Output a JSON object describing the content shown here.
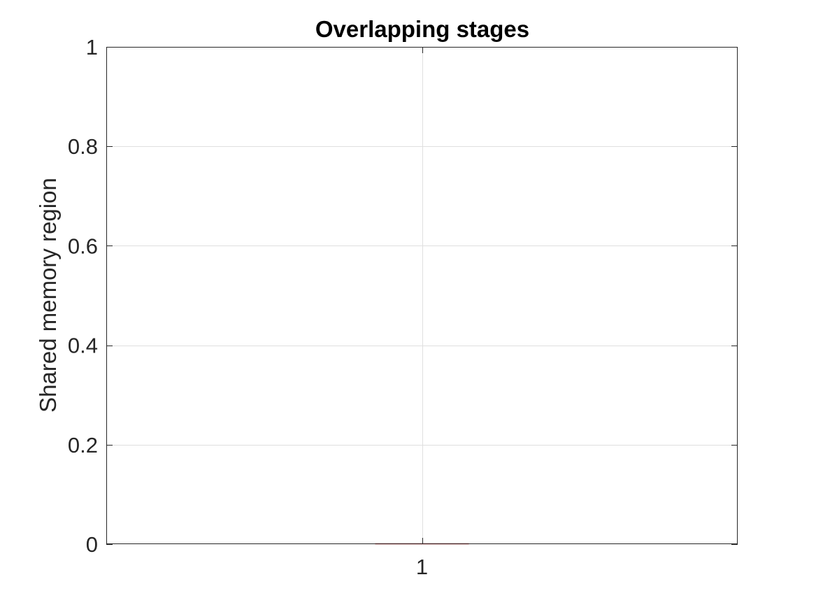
{
  "chart_data": {
    "type": "box",
    "title": "Overlapping stages",
    "xlabel": "",
    "ylabel": "Shared memory region",
    "categories": [
      "1"
    ],
    "x_ticks": [
      "1"
    ],
    "y_ticks": [
      "0",
      "0.2",
      "0.4",
      "0.6",
      "0.8",
      "1"
    ],
    "ylim": [
      0,
      1
    ],
    "grid": true,
    "boxes": [
      {
        "category": "1",
        "min": 0,
        "q1": 0,
        "median": 0,
        "q3": 0,
        "max": 0
      }
    ],
    "colors": {
      "axes": "#262626",
      "grid": "#dfdfdf",
      "median": "#d62728",
      "box": "#0072bd"
    }
  }
}
